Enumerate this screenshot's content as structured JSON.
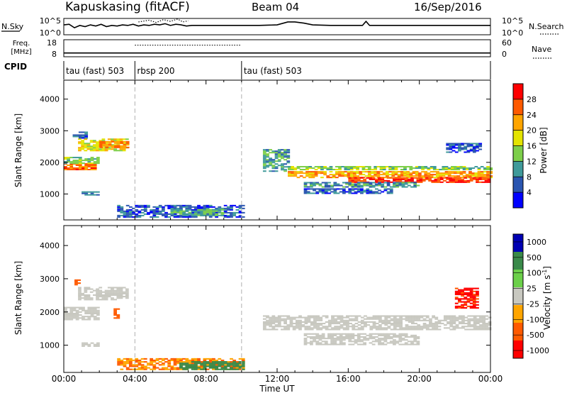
{
  "header": {
    "station": "Kapuskasing (fitACF)",
    "beam": "Beam 04",
    "date": "16/Sep/2016"
  },
  "chart_data": [
    {
      "type": "line",
      "panel": "noise",
      "left_label": "N.Sky",
      "left_ticks": [
        "10^5",
        "10^0"
      ],
      "right_ticks": [
        "10^5",
        "10^0"
      ],
      "right_label": "N.Search",
      "series": [
        {
          "name": "N.Sky",
          "style": "solid",
          "x": [
            0.0,
            0.3,
            0.6,
            0.9,
            1.2,
            1.5,
            1.8,
            2.1,
            2.4,
            2.7,
            3.0,
            3.3,
            3.6,
            3.9,
            4.2,
            4.5,
            4.8,
            5.1,
            5.4,
            5.7,
            6.0,
            6.3,
            6.6,
            6.9,
            7.2,
            7.5,
            8.0,
            9.0,
            10.0,
            11.0,
            12.0,
            12.6,
            13.0,
            13.5,
            14.0,
            15.0,
            16.0,
            16.8,
            17.0,
            17.2,
            18.0,
            19.0,
            20.0,
            21.0,
            22.0,
            23.0,
            24.0
          ],
          "y": [
            0.85,
            0.9,
            0.6,
            0.8,
            0.7,
            0.85,
            0.75,
            0.9,
            0.7,
            0.8,
            0.75,
            0.85,
            0.8,
            0.9,
            0.75,
            0.85,
            0.8,
            0.9,
            0.85,
            0.95,
            0.8,
            0.9,
            0.85,
            0.75,
            0.8,
            0.8,
            0.8,
            0.8,
            0.8,
            0.8,
            0.85,
            1.1,
            1.1,
            1.0,
            0.85,
            0.8,
            0.8,
            0.8,
            1.15,
            0.8,
            0.8,
            0.8,
            0.8,
            0.8,
            0.8,
            0.8,
            0.8
          ]
        },
        {
          "name": "N.Search",
          "style": "dotted",
          "x": [
            4.2,
            4.8,
            5.2,
            5.6,
            6.0,
            6.4,
            6.7,
            7.0
          ],
          "y": [
            1.1,
            1.25,
            1.05,
            1.3,
            1.15,
            1.35,
            1.1,
            1.2
          ]
        }
      ]
    },
    {
      "type": "line",
      "panel": "frequency",
      "left_label_lines": [
        "Freq.",
        "[MHz]"
      ],
      "left_ticks": [
        "18",
        "8"
      ],
      "right_ticks": [
        "60",
        "0"
      ],
      "right_label": "Nave",
      "ylim": [
        8,
        18
      ],
      "series": [
        {
          "name": "Freq.",
          "style": "solid",
          "x": [
            0,
            24
          ],
          "y": [
            10.2,
            10.2
          ]
        },
        {
          "name": "Nave",
          "style": "dotted",
          "x": [
            4.0,
            10.0
          ],
          "y": [
            14.8,
            14.8
          ]
        }
      ]
    },
    {
      "type": "table",
      "panel": "cpid",
      "label": "CPID",
      "segments": [
        {
          "start": 0,
          "end": 4,
          "name": "tau (fast) 503"
        },
        {
          "start": 4,
          "end": 10,
          "name": "rbsp 200"
        },
        {
          "start": 10,
          "end": 24,
          "name": "tau (fast) 503"
        }
      ]
    },
    {
      "type": "heatmap",
      "panel": "power",
      "ylabel": "Slant Range [km]",
      "yticks": [
        1000,
        2000,
        3000,
        4000
      ],
      "ylim": [
        180,
        4600
      ],
      "xlim": [
        0,
        24
      ],
      "colorbar": {
        "label": "Power [dB]",
        "ticks": [
          4,
          8,
          12,
          16,
          20,
          24,
          28
        ],
        "range": [
          0,
          32
        ]
      },
      "regions": [
        {
          "t0": 0.0,
          "t1": 1.8,
          "r0": 1750,
          "r1": 1950,
          "value": 25
        },
        {
          "t0": 0.0,
          "t1": 1.9,
          "r0": 1950,
          "r1": 2150,
          "value": 14
        },
        {
          "t0": 0.8,
          "t1": 3.6,
          "r0": 2350,
          "r1": 2750,
          "value": 18
        },
        {
          "t0": 2.0,
          "t1": 3.6,
          "r0": 2450,
          "r1": 2650,
          "value": 24
        },
        {
          "t0": 0.5,
          "t1": 1.2,
          "r0": 2750,
          "r1": 2950,
          "value": 6
        },
        {
          "t0": 1.0,
          "t1": 2.0,
          "r0": 950,
          "r1": 1050,
          "value": 8
        },
        {
          "t0": 3.0,
          "t1": 10.0,
          "r0": 250,
          "r1": 650,
          "value": 6
        },
        {
          "t0": 6.0,
          "t1": 9.0,
          "r0": 300,
          "r1": 500,
          "value": 12
        },
        {
          "t0": 11.2,
          "t1": 12.6,
          "r0": 1700,
          "r1": 2400,
          "value": 10
        },
        {
          "t0": 12.6,
          "t1": 24.0,
          "r0": 1750,
          "r1": 1850,
          "value": 14
        },
        {
          "t0": 12.6,
          "t1": 24.0,
          "r0": 1500,
          "r1": 1700,
          "value": 22
        },
        {
          "t0": 16.0,
          "t1": 24.0,
          "r0": 1350,
          "r1": 1500,
          "value": 28
        },
        {
          "t0": 13.5,
          "t1": 20.0,
          "r0": 1200,
          "r1": 1350,
          "value": 10
        },
        {
          "t0": 13.5,
          "t1": 18.5,
          "r0": 1000,
          "r1": 1150,
          "value": 6
        },
        {
          "t0": 21.5,
          "t1": 23.5,
          "r0": 2300,
          "r1": 2600,
          "value": 6
        }
      ]
    },
    {
      "type": "heatmap",
      "panel": "velocity",
      "ylabel": "Slant Range [km]",
      "xlabel": "Time UT",
      "yticks": [
        1000,
        2000,
        3000,
        4000
      ],
      "ylim": [
        180,
        4600
      ],
      "xlim": [
        0,
        24
      ],
      "xticks": [
        "00:00",
        "04:00",
        "08:00",
        "12:00",
        "16:00",
        "20:00",
        "00:00"
      ],
      "colorbar": {
        "label": "Velocity [m s-1]",
        "label_main": "Velocity [m s",
        "label_sup": "-1",
        "label_end": "]",
        "ticks": [
          1000,
          500,
          100,
          25,
          -25,
          -100,
          -500,
          -1000
        ]
      },
      "regions": [
        {
          "t0": 0.0,
          "t1": 1.9,
          "r0": 1750,
          "r1": 2150,
          "value": 0
        },
        {
          "t0": 0.8,
          "t1": 3.6,
          "r0": 2350,
          "r1": 2750,
          "value": 0
        },
        {
          "t0": 0.6,
          "t1": 0.9,
          "r0": 2800,
          "r1": 2950,
          "value": -200
        },
        {
          "t0": 2.8,
          "t1": 3.1,
          "r0": 1750,
          "r1": 2100,
          "value": -300
        },
        {
          "t0": 1.0,
          "t1": 2.0,
          "r0": 950,
          "r1": 1050,
          "value": 0
        },
        {
          "t0": 3.0,
          "t1": 10.0,
          "r0": 250,
          "r1": 600,
          "value": -100
        },
        {
          "t0": 6.5,
          "t1": 10.0,
          "r0": 250,
          "r1": 500,
          "value": 150
        },
        {
          "t0": 11.2,
          "t1": 24.0,
          "r0": 1450,
          "r1": 1900,
          "value": 0
        },
        {
          "t0": 13.5,
          "t1": 20.0,
          "r0": 1000,
          "r1": 1350,
          "value": 0
        },
        {
          "t0": 22.0,
          "t1": 23.3,
          "r0": 2100,
          "r1": 2700,
          "value": -600
        }
      ]
    }
  ],
  "palettes": {
    "power": [
      "#0000ff",
      "#2a55b0",
      "#3f9a9a",
      "#7dcf4a",
      "#e4e400",
      "#ffa500",
      "#ff5a00",
      "#ff0000"
    ],
    "velocity": [
      "#0000b4",
      "#3a8a4a",
      "#6cd04a",
      "#c8c8c0",
      "#ffa500",
      "#ff5a00",
      "#ff0000"
    ]
  }
}
